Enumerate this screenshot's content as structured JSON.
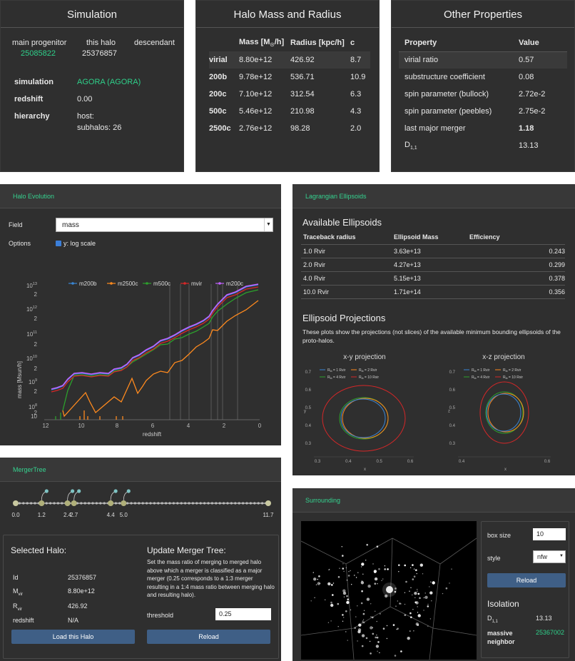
{
  "simulation_panel": {
    "title": "Simulation",
    "main_progenitor_label": "main progenitor",
    "main_progenitor_id": "25085822",
    "this_halo_label": "this halo",
    "this_halo_id": "25376857",
    "descendant_label": "descendant",
    "rows": [
      {
        "label": "simulation",
        "value": "AGORA (AGORA)"
      },
      {
        "label": "redshift",
        "value": "0.00"
      },
      {
        "label": "hierarchy",
        "value": "host:"
      }
    ],
    "subhalos": "subhalos: 26"
  },
  "mass_panel": {
    "title": "Halo Mass and Radius",
    "headers": [
      "",
      "Mass [M",
      "Radius [kpc/h]",
      "c"
    ],
    "mass_unit_sub": "☉",
    "mass_unit_suffix": "/h]",
    "rows": [
      [
        "virial",
        "8.80e+12",
        "426.92",
        "8.7"
      ],
      [
        "200b",
        "9.78e+12",
        "536.71",
        "10.9"
      ],
      [
        "200c",
        "7.10e+12",
        "312.54",
        "6.3"
      ],
      [
        "500c",
        "5.46e+12",
        "210.98",
        "4.3"
      ],
      [
        "2500c",
        "2.76e+12",
        "98.28",
        "2.0"
      ]
    ]
  },
  "other_panel": {
    "title": "Other Properties",
    "headers": [
      "Property",
      "Value"
    ],
    "rows": [
      [
        "virial ratio",
        "0.57"
      ],
      [
        "substructure coefficient",
        "0.08"
      ],
      [
        "spin parameter (bullock)",
        "2.72e-2"
      ],
      [
        "spin parameter (peebles)",
        "2.75e-2"
      ],
      [
        "last major merger",
        "1.18"
      ]
    ],
    "d11_label": "D",
    "d11_sub": "1,1",
    "d11_value": "13.13"
  },
  "evolution_panel": {
    "header": "Halo Evolution",
    "field_label": "Field",
    "field_value": "mass",
    "options_label": "Options",
    "log_label": "y: log scale",
    "chart_data": {
      "type": "line",
      "xlabel": "redshift",
      "ylabel": "mass [Msun/h]",
      "x_ticks": [
        "12",
        "10",
        "8",
        "6",
        "4",
        "2",
        "0"
      ],
      "y_tick_mantissa": [
        "10",
        "2",
        "10",
        "2",
        "10",
        "2",
        "10",
        "2",
        "10",
        "2",
        "10",
        "2",
        "10"
      ],
      "y_tick_exp": [
        "13",
        "",
        "12",
        "",
        "11",
        "",
        "10",
        "",
        "9",
        "",
        "8",
        "",
        ""
      ],
      "legend": [
        "m200b",
        "m2500c",
        "m500c",
        "mvir",
        "m200c"
      ],
      "colors": [
        "#3a86d4",
        "#ff8a1e",
        "#2ca02c",
        "#d62728",
        "#c062ff"
      ]
    }
  },
  "lagrangian_panel": {
    "header": "Lagrangian Ellipsoids",
    "available_title": "Available Ellipsoids",
    "headers": [
      "Traceback radius",
      "Ellipsoid Mass",
      "Efficiency"
    ],
    "rows": [
      [
        "1.0 Rvir",
        "3.63e+13",
        "0.243"
      ],
      [
        "2.0 Rvir",
        "4.27e+13",
        "0.299"
      ],
      [
        "4.0 Rvir",
        "5.15e+13",
        "0.378"
      ],
      [
        "10.0 Rvir",
        "1.71e+14",
        "0.356"
      ]
    ],
    "projections_title": "Ellipsoid Projections",
    "projections_text": "These plots show the projections (not slices) of the available minimum bounding ellipsoids of the proto-halos.",
    "xy_title": "x-y projection",
    "xz_title": "x-z projection",
    "legend": [
      "R",
      "R",
      "R",
      "R"
    ],
    "legend_vals": [
      "= 1 Rvir",
      "= 2 Rvir",
      "= 4 Rvir",
      "= 10 Rvir"
    ],
    "xy_ticks_x": [
      "0.3",
      "0.4",
      "0.5",
      "0.6"
    ],
    "xy_ticks_y": [
      "0.7",
      "0.6",
      "0.5",
      "0.4",
      "0.3"
    ],
    "xz_ticks_x": [
      "0.4",
      "0.6"
    ],
    "xz_ticks_y": [
      "0.7",
      "0.6",
      "0.5",
      "0.4",
      "0.3"
    ],
    "axis_x": "x",
    "axis_y": "y",
    "axis_z": "z",
    "ellipse_colors": [
      "#3a86d4",
      "#ff8a1e",
      "#2ca02c",
      "#d62728"
    ]
  },
  "merger_panel": {
    "header": "MergerTree",
    "ticks": [
      "0.0",
      "1.2",
      "2.4",
      "2.7",
      "4.4",
      "5.0",
      "11.7"
    ],
    "selected_title": "Selected Halo:",
    "selected_rows": [
      {
        "label": "Id",
        "value": "25376857"
      },
      {
        "label": "M",
        "sub": "vir",
        "value": "8.80e+12"
      },
      {
        "label": "R",
        "sub": "vir",
        "value": "426.92"
      },
      {
        "label": "redshift",
        "value": "N/A"
      }
    ],
    "load_button": "Load this Halo",
    "update_title": "Update Merger Tree:",
    "update_text": "Set the mass ratio of merging to merged halo above which a merger is classified as a major merger (0.25 corresponds to a 1:3 merger resulting in a 1:4 mass ratio between merging halo and resulting halo).",
    "threshold_label": "threshold",
    "threshold_value": "0.25",
    "reload_button": "Reload"
  },
  "surrounding_panel": {
    "header": "Surrounding",
    "box_size_label": "box size",
    "box_size_value": "10",
    "style_label": "style",
    "style_value": "nfw",
    "reload_button": "Reload",
    "isolation_title": "Isolation",
    "d11_label": "D",
    "d11_sub": "1,1",
    "d11_value": "13.13",
    "neighbor_label1": "massive",
    "neighbor_label2": "neighbor",
    "neighbor_value": "25367002"
  }
}
